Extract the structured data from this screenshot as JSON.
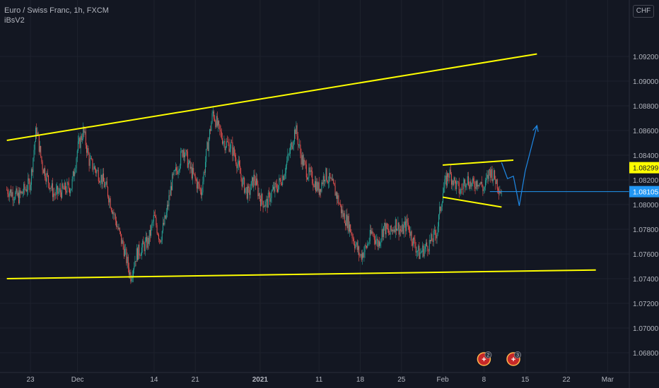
{
  "header": {
    "symbol_line": "Euro / Swiss Franc, 1h, FXCM",
    "indicator": "iBsV2"
  },
  "currency_button": "CHF",
  "colors": {
    "background": "#131722",
    "grid": "#1e222d",
    "up": "#26a69a",
    "down": "#ef5350",
    "trendline": "#ffff00",
    "projection": "#2196f3",
    "axis_text": "#b2b5be"
  },
  "chart_data": {
    "type": "candlestick",
    "title": "Euro / Swiss Franc, 1h, FXCM",
    "y_ticks": [
      "1.09200",
      "1.09000",
      "1.08800",
      "1.08600",
      "1.08400",
      "1.08200",
      "1.08000",
      "1.07800",
      "1.07600",
      "1.07400",
      "1.07200",
      "1.07000",
      "1.06800"
    ],
    "y_range": [
      1.0677,
      1.0939
    ],
    "x_ticks": [
      "23",
      "Dec",
      "14",
      "21",
      "2021",
      "11",
      "18",
      "25",
      "Feb",
      "8",
      "15",
      "22",
      "Mar"
    ],
    "price_labels": [
      {
        "label": "1.08299",
        "value": 1.08299,
        "style": "yellow"
      },
      {
        "label": "1.08105",
        "value": 1.08105,
        "style": "blue"
      }
    ],
    "price_path": [
      [
        0.0,
        1.0812
      ],
      [
        0.04,
        1.0816
      ],
      [
        0.08,
        1.0809
      ],
      [
        0.11,
        1.0822
      ],
      [
        0.14,
        1.0818
      ],
      [
        0.18,
        1.0805
      ],
      [
        0.22,
        1.0826
      ],
      [
        0.27,
        1.0835
      ],
      [
        0.32,
        1.0848
      ],
      [
        0.36,
        1.0823
      ],
      [
        0.4,
        1.0806
      ],
      [
        0.44,
        1.0815
      ],
      [
        0.48,
        1.0803
      ],
      [
        0.53,
        1.0834
      ],
      [
        0.57,
        1.0857
      ],
      [
        0.6,
        1.0842
      ],
      [
        0.64,
        1.0818
      ],
      [
        0.68,
        1.0798
      ],
      [
        0.72,
        1.078
      ],
      [
        0.76,
        1.0762
      ],
      [
        0.8,
        1.0752
      ],
      [
        0.84,
        1.0745
      ],
      [
        0.88,
        1.0768
      ],
      [
        0.92,
        1.0792
      ],
      [
        0.96,
        1.078
      ],
      [
        1.0,
        1.0775
      ]
    ],
    "candle_segments": [
      {
        "x_start": "Nov 19",
        "x_end": "Feb 11",
        "open": 1.081,
        "waypoints": [
          [
            "Nov 19",
            1.0812
          ],
          [
            "Nov 21",
            1.0806
          ],
          [
            "Nov 23",
            1.0818
          ],
          [
            "Nov 24",
            1.0862
          ],
          [
            "Nov 25",
            1.0832
          ],
          [
            "Nov 27",
            1.0808
          ],
          [
            "Nov 30",
            1.0815
          ],
          [
            "Dec 1",
            1.0845
          ],
          [
            "Dec 2",
            1.086
          ],
          [
            "Dec 3",
            1.0835
          ],
          [
            "Dec 5",
            1.0822
          ],
          [
            "Dec 6",
            1.0812
          ],
          [
            "Dec 7",
            1.0795
          ],
          [
            "Dec 8",
            1.0778
          ],
          [
            "Dec 9",
            1.0762
          ],
          [
            "Dec 10",
            1.0742
          ],
          [
            "Dec 11",
            1.076
          ],
          [
            "Dec 13",
            1.077
          ],
          [
            "Dec 14",
            1.079
          ],
          [
            "Dec 15",
            1.0772
          ],
          [
            "Dec 16",
            1.079
          ],
          [
            "Dec 17",
            1.0818
          ],
          [
            "Dec 18",
            1.083
          ],
          [
            "Dec 19",
            1.0846
          ],
          [
            "Dec 20",
            1.083
          ],
          [
            "Dec 21",
            1.082
          ],
          [
            "Dec 22",
            1.081
          ],
          [
            "Dec 23",
            1.0845
          ],
          [
            "Dec 24",
            1.0875
          ],
          [
            "Dec 25",
            1.086
          ],
          [
            "Dec 26",
            1.085
          ],
          [
            "Dec 27",
            1.0848
          ],
          [
            "Dec 28",
            1.0836
          ],
          [
            "Dec 29",
            1.0818
          ],
          [
            "Dec 30",
            1.0808
          ],
          [
            "Dec 31",
            1.0822
          ],
          [
            "Jan 1",
            1.0805
          ],
          [
            "Jan 2",
            1.08
          ],
          [
            "Jan 3",
            1.081
          ],
          [
            "Jan 4",
            1.0815
          ],
          [
            "Jan 5",
            1.0825
          ],
          [
            "Jan 6",
            1.0842
          ],
          [
            "Jan 7",
            1.0862
          ],
          [
            "Jan 8",
            1.0838
          ],
          [
            "Jan 9",
            1.0826
          ],
          [
            "Jan 10",
            1.082
          ],
          [
            "Jan 11",
            1.0812
          ],
          [
            "Jan 12",
            1.0825
          ],
          [
            "Jan 13",
            1.0818
          ],
          [
            "Jan 14",
            1.0808
          ],
          [
            "Jan 15",
            1.0792
          ],
          [
            "Jan 16",
            1.0785
          ],
          [
            "Jan 17",
            1.077
          ],
          [
            "Jan 18",
            1.0758
          ],
          [
            "Jan 19",
            1.0765
          ],
          [
            "Jan 20",
            1.0778
          ],
          [
            "Jan 21",
            1.0768
          ],
          [
            "Jan 22",
            1.0782
          ],
          [
            "Jan 23",
            1.0776
          ],
          [
            "Jan 24",
            1.0785
          ],
          [
            "Jan 25",
            1.0778
          ],
          [
            "Jan 26",
            1.0785
          ],
          [
            "Jan 27",
            1.077
          ],
          [
            "Jan 28",
            1.076
          ],
          [
            "Jan 29",
            1.0765
          ],
          [
            "Jan 30",
            1.077
          ],
          [
            "Jan 31",
            1.0778
          ],
          [
            "Feb 1",
            1.081
          ],
          [
            "Feb 2",
            1.0826
          ],
          [
            "Feb 3",
            1.0818
          ],
          [
            "Feb 4",
            1.081
          ],
          [
            "Feb 5",
            1.0822
          ],
          [
            "Feb 6",
            1.0815
          ],
          [
            "Feb 7",
            1.082
          ],
          [
            "Feb 8",
            1.0812
          ],
          [
            "Feb 9",
            1.0828
          ],
          [
            "Feb 10",
            1.082
          ],
          [
            "Feb 11",
            1.081
          ]
        ]
      }
    ],
    "trendlines": [
      {
        "name": "upper-channel",
        "from": [
          "Nov 19",
          1.0852
        ],
        "to": [
          "Feb 17",
          1.0922
        ]
      },
      {
        "name": "lower-channel",
        "from": [
          "Nov 19",
          1.074
        ],
        "to": [
          "Feb 27",
          1.0747
        ]
      },
      {
        "name": "wedge-top",
        "from": [
          "Feb 1",
          1.0832
        ],
        "to": [
          "Feb 13",
          1.0836
        ]
      },
      {
        "name": "wedge-bottom",
        "from": [
          "Feb 1",
          1.0806
        ],
        "to": [
          "Feb 11",
          1.0798
        ]
      }
    ],
    "projection": [
      [
        "Feb 11",
        1.0834
      ],
      [
        "Feb 12",
        1.0821
      ],
      [
        "Feb 13",
        1.0823
      ],
      [
        "Feb 14",
        1.0799
      ],
      [
        "Feb 15",
        1.0827
      ],
      [
        "Feb 17",
        1.0864
      ]
    ],
    "horizontal_line": {
      "value": 1.08105,
      "from": "Feb 9"
    },
    "event_badges": [
      {
        "label": "2",
        "x": "Feb 8"
      },
      {
        "label": "3",
        "x": "Feb 13"
      }
    ]
  }
}
